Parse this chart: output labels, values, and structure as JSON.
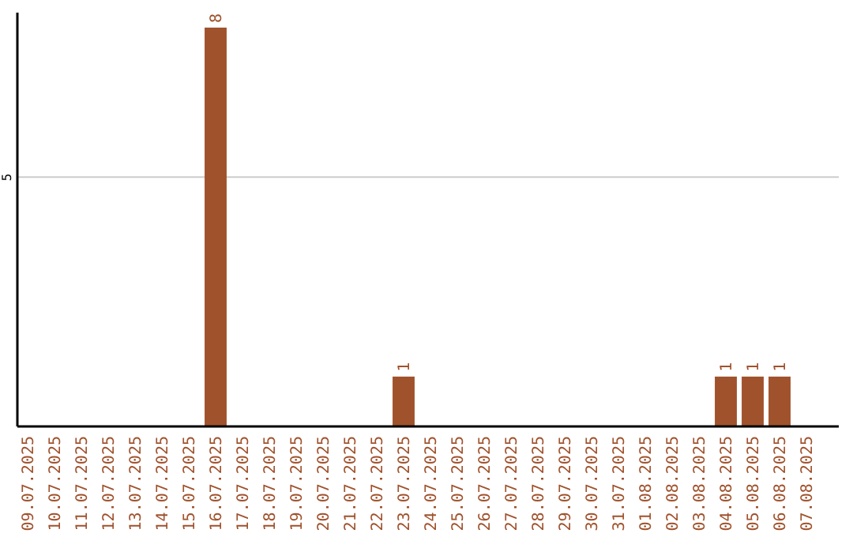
{
  "chart_data": {
    "type": "bar",
    "categories": [
      "09.07.2025",
      "10.07.2025",
      "11.07.2025",
      "12.07.2025",
      "13.07.2025",
      "14.07.2025",
      "15.07.2025",
      "16.07.2025",
      "17.07.2025",
      "18.07.2025",
      "19.07.2025",
      "20.07.2025",
      "21.07.2025",
      "22.07.2025",
      "23.07.2025",
      "24.07.2025",
      "25.07.2025",
      "26.07.2025",
      "27.07.2025",
      "28.07.2025",
      "29.07.2025",
      "30.07.2025",
      "31.07.2025",
      "01.08.2025",
      "02.08.2025",
      "03.08.2025",
      "04.08.2025",
      "05.08.2025",
      "06.08.2025",
      "07.08.2025"
    ],
    "values": [
      0,
      0,
      0,
      0,
      0,
      0,
      0,
      8,
      0,
      0,
      0,
      0,
      0,
      0,
      1,
      0,
      0,
      0,
      0,
      0,
      0,
      0,
      0,
      0,
      0,
      0,
      1,
      1,
      1,
      0
    ],
    "value_labels": [
      null,
      null,
      null,
      null,
      null,
      null,
      null,
      "8",
      null,
      null,
      null,
      null,
      null,
      null,
      "1",
      null,
      null,
      null,
      null,
      null,
      null,
      null,
      null,
      null,
      null,
      null,
      "1",
      "1",
      "1",
      null
    ],
    "color": "#a0522d",
    "ylim": [
      0,
      8.3
    ],
    "yticks": [
      5
    ],
    "grid": "y"
  }
}
